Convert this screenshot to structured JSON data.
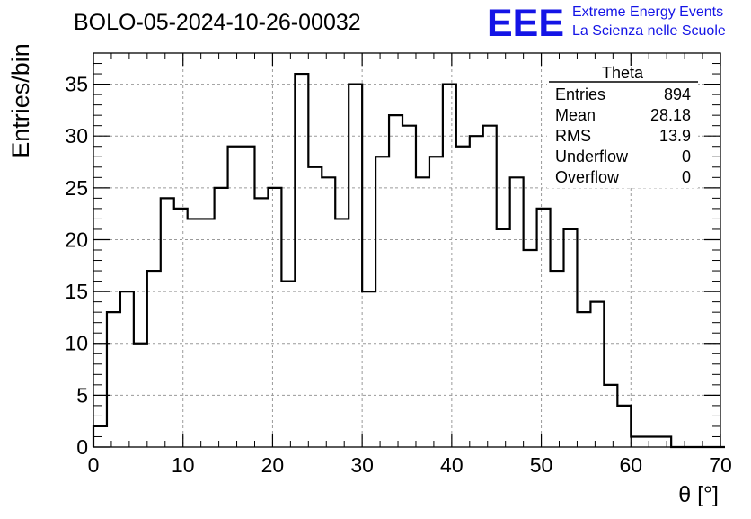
{
  "title": "BOLO-05-2024-10-26-00032",
  "logo": {
    "mark": "EEE",
    "line1": "Extreme Energy Events",
    "line2": "La Scienza nelle Scuole",
    "color": "#1414e6"
  },
  "stats": {
    "name": "Theta",
    "rows": [
      {
        "label": "Entries",
        "value": "894"
      },
      {
        "label": "Mean",
        "value": "28.18"
      },
      {
        "label": "RMS",
        "value": "13.9"
      },
      {
        "label": "Underflow",
        "value": "0"
      },
      {
        "label": "Overflow",
        "value": "0"
      }
    ]
  },
  "chart_data": {
    "type": "histogram",
    "title": "BOLO-05-2024-10-26-00032",
    "xlabel": "θ [°]",
    "ylabel": "Entries/bin",
    "xlim": [
      0,
      70
    ],
    "ylim": [
      0,
      38
    ],
    "bin_width": 1.5,
    "x_start": 0,
    "x_ticks": [
      0,
      10,
      20,
      30,
      40,
      50,
      60,
      70
    ],
    "y_ticks": [
      0,
      5,
      10,
      15,
      20,
      25,
      30,
      35
    ],
    "grid": true,
    "line_color": "#000000",
    "values": [
      2,
      13,
      15,
      10,
      17,
      24,
      23,
      22,
      22,
      25,
      29,
      29,
      24,
      25,
      16,
      36,
      27,
      26,
      22,
      35,
      15,
      28,
      32,
      31,
      26,
      28,
      35,
      29,
      30,
      31,
      21,
      26,
      19,
      23,
      17,
      21,
      13,
      14,
      6,
      4,
      1,
      1,
      1,
      0,
      0,
      0,
      0
    ]
  }
}
